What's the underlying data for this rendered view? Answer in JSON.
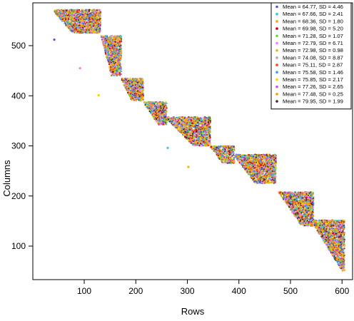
{
  "chart_data": {
    "type": "scatter",
    "title": "",
    "xlabel": "Rows",
    "ylabel": "Columns",
    "xlim": [
      30,
      610
    ],
    "ylim": [
      40,
      580
    ],
    "xticks": [
      "100",
      "200",
      "300",
      "400",
      "500",
      "600"
    ],
    "yticks": [
      "100",
      "200",
      "300",
      "400",
      "500"
    ],
    "grid": false,
    "legend_position": "top-right",
    "blocks": [
      {
        "x": [
          42,
          132
        ],
        "y": [
          525,
          572
        ],
        "diag": [
          [
            42,
            570
          ],
          [
            132,
            465
          ]
        ]
      },
      {
        "x": [
          132,
          172
        ],
        "y": [
          440,
          520
        ],
        "diag": [
          [
            132,
            525
          ],
          [
            172,
            375
          ]
        ]
      },
      {
        "x": [
          172,
          215
        ],
        "y": [
          390,
          435
        ],
        "diag": [
          [
            172,
            435
          ],
          [
            215,
            345
          ]
        ]
      },
      {
        "x": [
          215,
          260
        ],
        "y": [
          342,
          388
        ],
        "diag": [
          [
            215,
            390
          ],
          [
            260,
            320
          ]
        ]
      },
      {
        "x": [
          260,
          345
        ],
        "y": [
          300,
          358
        ],
        "diag": [
          [
            260,
            358
          ],
          [
            345,
            270
          ]
        ]
      },
      {
        "x": [
          345,
          392
        ],
        "y": [
          265,
          300
        ],
        "diag": [
          [
            345,
            300
          ],
          [
            392,
            235
          ]
        ]
      },
      {
        "x": [
          392,
          472
        ],
        "y": [
          225,
          283
        ],
        "diag": [
          [
            392,
            283
          ],
          [
            472,
            175
          ]
        ]
      },
      {
        "x": [
          472,
          545
        ],
        "y": [
          140,
          208
        ],
        "diag": [
          [
            472,
            220
          ],
          [
            545,
            110
          ]
        ]
      },
      {
        "x": [
          545,
          605
        ],
        "y": [
          50,
          152
        ],
        "diag": [
          [
            545,
            150
          ],
          [
            605,
            50
          ]
        ]
      }
    ],
    "outliers": [
      [
        42,
        512
      ],
      [
        92,
        455
      ],
      [
        128,
        401
      ],
      [
        262,
        296
      ],
      [
        302,
        258
      ]
    ],
    "series": [
      {
        "name": "Mean = 64.77, SD = 4.46",
        "color": "#4f5bd5"
      },
      {
        "name": "Mean = 67.66, SD = 2.41",
        "color": "#2ec8e6"
      },
      {
        "name": "Mean = 68.36, SD = 1.80",
        "color": "#ffa500"
      },
      {
        "name": "Mean = 69.98, SD = 5.20",
        "color": "#cc0000"
      },
      {
        "name": "Mean = 71.28, SD = 1.07",
        "color": "#66dd22"
      },
      {
        "name": "Mean = 72.79, SD = 6.71",
        "color": "#ff77ff"
      },
      {
        "name": "Mean = 72.98, SD = 0.98",
        "color": "#ffb000"
      },
      {
        "name": "Mean = 74.08, SD = 8.87",
        "color": "#aaaaaa"
      },
      {
        "name": "Mean = 75.11, SD = 2.87",
        "color": "#ff4500"
      },
      {
        "name": "Mean = 75.58, SD = 1.46",
        "color": "#3399ff"
      },
      {
        "name": "Mean = 75.85, SD = 2.17",
        "color": "#ffd400"
      },
      {
        "name": "Mean = 77.26, SD = 2.65",
        "color": "#cc55dd"
      },
      {
        "name": "Mean = 77.48, SD = 0.25",
        "color": "#ff9900"
      },
      {
        "name": "Mean = 79.95, SD = 1.99",
        "color": "#333333"
      }
    ]
  }
}
